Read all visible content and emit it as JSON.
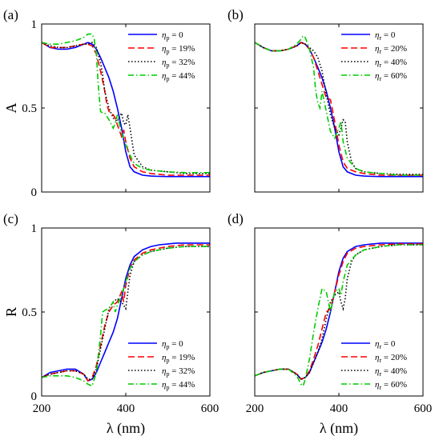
{
  "chart_data": [
    {
      "panel_label": "(a)",
      "type": "line",
      "ylabel": "A",
      "xlabel": "",
      "xlim": [
        200,
        600
      ],
      "ylim": [
        0,
        1
      ],
      "xticks": [],
      "yticks": [
        "0",
        "0.5",
        "1"
      ],
      "legend": {
        "position": "top-right",
        "symbol": "η",
        "subscript": "p"
      },
      "series": [
        {
          "name": "0",
          "color": "#0000ff",
          "dash": "solid",
          "x": [
            200,
            220,
            240,
            260,
            280,
            300,
            310,
            320,
            330,
            340,
            350,
            360,
            370,
            380,
            390,
            400,
            410,
            420,
            440,
            460,
            480,
            500,
            520,
            540,
            560,
            580,
            600
          ],
          "y": [
            0.89,
            0.86,
            0.85,
            0.85,
            0.86,
            0.88,
            0.89,
            0.88,
            0.85,
            0.8,
            0.74,
            0.68,
            0.6,
            0.5,
            0.38,
            0.24,
            0.15,
            0.12,
            0.1,
            0.095,
            0.093,
            0.092,
            0.092,
            0.092,
            0.092,
            0.092,
            0.092
          ]
        },
        {
          "name": "19%",
          "color": "#ff0000",
          "dash": "dashed",
          "x": [
            200,
            220,
            240,
            260,
            280,
            300,
            310,
            320,
            330,
            340,
            350,
            355,
            360,
            370,
            375,
            380,
            390,
            395,
            400,
            410,
            420,
            440,
            460,
            500,
            540,
            580,
            600
          ],
          "y": [
            0.89,
            0.86,
            0.86,
            0.86,
            0.87,
            0.88,
            0.88,
            0.87,
            0.82,
            0.72,
            0.6,
            0.52,
            0.48,
            0.46,
            0.44,
            0.4,
            0.33,
            0.37,
            0.3,
            0.2,
            0.15,
            0.12,
            0.11,
            0.1,
            0.1,
            0.1,
            0.1
          ]
        },
        {
          "name": "32%",
          "color": "#000000",
          "dash": "dotted",
          "x": [
            200,
            220,
            240,
            260,
            280,
            300,
            310,
            320,
            330,
            340,
            345,
            350,
            360,
            370,
            380,
            385,
            390,
            395,
            400,
            405,
            410,
            420,
            440,
            460,
            500,
            540,
            580,
            600
          ],
          "y": [
            0.89,
            0.87,
            0.86,
            0.86,
            0.87,
            0.88,
            0.88,
            0.89,
            0.86,
            0.77,
            0.7,
            0.6,
            0.5,
            0.44,
            0.42,
            0.45,
            0.47,
            0.41,
            0.4,
            0.46,
            0.38,
            0.22,
            0.15,
            0.13,
            0.12,
            0.11,
            0.11,
            0.11
          ]
        },
        {
          "name": "44%",
          "color": "#00cc00",
          "dash": "dashdot",
          "x": [
            200,
            220,
            240,
            260,
            280,
            300,
            310,
            320,
            325,
            330,
            335,
            340,
            345,
            350,
            360,
            370,
            375,
            380,
            390,
            400,
            410,
            420,
            440,
            460,
            500,
            540,
            580,
            600
          ],
          "y": [
            0.89,
            0.88,
            0.88,
            0.89,
            0.9,
            0.92,
            0.94,
            0.94,
            0.91,
            0.82,
            0.62,
            0.48,
            0.47,
            0.47,
            0.43,
            0.38,
            0.41,
            0.46,
            0.35,
            0.28,
            0.22,
            0.17,
            0.14,
            0.13,
            0.12,
            0.115,
            0.115,
            0.115
          ]
        }
      ]
    },
    {
      "panel_label": "(b)",
      "type": "line",
      "ylabel": "",
      "xlabel": "",
      "xlim": [
        200,
        600
      ],
      "ylim": [
        0,
        1
      ],
      "xticks": [],
      "yticks": [],
      "legend": {
        "position": "top-right",
        "symbol": "η",
        "subscript": "r"
      },
      "series": [
        {
          "name": "0",
          "color": "#0000ff",
          "dash": "solid",
          "x": [
            200,
            220,
            240,
            260,
            280,
            300,
            310,
            320,
            330,
            340,
            350,
            360,
            370,
            380,
            390,
            400,
            410,
            420,
            440,
            460,
            480,
            500,
            520,
            540,
            560,
            580,
            600
          ],
          "y": [
            0.89,
            0.86,
            0.84,
            0.84,
            0.85,
            0.87,
            0.89,
            0.88,
            0.85,
            0.8,
            0.74,
            0.68,
            0.6,
            0.5,
            0.38,
            0.24,
            0.15,
            0.12,
            0.1,
            0.095,
            0.093,
            0.092,
            0.092,
            0.092,
            0.092,
            0.092,
            0.092
          ]
        },
        {
          "name": "20%",
          "color": "#ff0000",
          "dash": "dashed",
          "x": [
            200,
            220,
            240,
            260,
            280,
            300,
            310,
            320,
            330,
            340,
            350,
            360,
            370,
            380,
            390,
            400,
            410,
            420,
            440,
            460,
            500,
            540,
            580,
            600
          ],
          "y": [
            0.89,
            0.86,
            0.84,
            0.84,
            0.85,
            0.87,
            0.89,
            0.88,
            0.85,
            0.8,
            0.72,
            0.64,
            0.56,
            0.55,
            0.42,
            0.28,
            0.18,
            0.14,
            0.12,
            0.11,
            0.1,
            0.1,
            0.1,
            0.1
          ]
        },
        {
          "name": "40%",
          "color": "#000000",
          "dash": "dotted",
          "x": [
            200,
            220,
            240,
            260,
            280,
            300,
            310,
            320,
            330,
            340,
            350,
            360,
            370,
            380,
            390,
            400,
            405,
            410,
            415,
            420,
            430,
            440,
            460,
            500,
            540,
            580,
            600
          ],
          "y": [
            0.89,
            0.86,
            0.84,
            0.84,
            0.85,
            0.87,
            0.89,
            0.88,
            0.86,
            0.84,
            0.8,
            0.72,
            0.58,
            0.46,
            0.38,
            0.34,
            0.38,
            0.43,
            0.42,
            0.3,
            0.18,
            0.14,
            0.12,
            0.11,
            0.105,
            0.105,
            0.105
          ]
        },
        {
          "name": "60%",
          "color": "#00cc00",
          "dash": "dashdot",
          "x": [
            200,
            220,
            240,
            260,
            280,
            300,
            310,
            315,
            320,
            330,
            340,
            345,
            350,
            355,
            360,
            370,
            380,
            390,
            400,
            405,
            410,
            420,
            440,
            460,
            500,
            540,
            580,
            600
          ],
          "y": [
            0.89,
            0.86,
            0.84,
            0.84,
            0.85,
            0.88,
            0.91,
            0.93,
            0.92,
            0.85,
            0.74,
            0.6,
            0.53,
            0.5,
            0.6,
            0.48,
            0.36,
            0.32,
            0.38,
            0.42,
            0.3,
            0.2,
            0.14,
            0.12,
            0.11,
            0.1,
            0.1,
            0.1
          ]
        }
      ]
    },
    {
      "panel_label": "(c)",
      "type": "line",
      "ylabel": "R",
      "xlabel": "λ (nm)",
      "xlim": [
        200,
        600
      ],
      "ylim": [
        0,
        1
      ],
      "xticks": [
        "200",
        "400",
        "600"
      ],
      "yticks": [
        "0",
        "0.5",
        "1"
      ],
      "legend": {
        "position": "bottom-right",
        "symbol": "η",
        "subscript": "p"
      },
      "series": [
        {
          "name": "0",
          "color": "#0000ff",
          "dash": "solid",
          "x": [
            200,
            220,
            240,
            260,
            280,
            300,
            310,
            320,
            330,
            340,
            350,
            360,
            370,
            380,
            390,
            400,
            410,
            420,
            440,
            460,
            480,
            500,
            520,
            540,
            560,
            580,
            600
          ],
          "y": [
            0.11,
            0.14,
            0.15,
            0.16,
            0.16,
            0.13,
            0.09,
            0.1,
            0.14,
            0.2,
            0.26,
            0.32,
            0.38,
            0.46,
            0.58,
            0.7,
            0.78,
            0.83,
            0.87,
            0.89,
            0.9,
            0.905,
            0.91,
            0.91,
            0.91,
            0.91,
            0.91
          ]
        },
        {
          "name": "19%",
          "color": "#ff0000",
          "dash": "dashed",
          "x": [
            200,
            220,
            240,
            260,
            280,
            300,
            310,
            320,
            330,
            340,
            350,
            360,
            370,
            380,
            390,
            395,
            400,
            410,
            420,
            440,
            460,
            500,
            540,
            580,
            600
          ],
          "y": [
            0.11,
            0.13,
            0.14,
            0.15,
            0.15,
            0.13,
            0.09,
            0.11,
            0.18,
            0.3,
            0.42,
            0.5,
            0.54,
            0.56,
            0.62,
            0.56,
            0.66,
            0.76,
            0.81,
            0.85,
            0.87,
            0.89,
            0.9,
            0.9,
            0.9
          ]
        },
        {
          "name": "32%",
          "color": "#000000",
          "dash": "dotted",
          "x": [
            200,
            220,
            240,
            260,
            280,
            300,
            310,
            320,
            330,
            340,
            350,
            360,
            370,
            380,
            390,
            400,
            405,
            410,
            420,
            440,
            460,
            500,
            540,
            580,
            600
          ],
          "y": [
            0.11,
            0.13,
            0.14,
            0.15,
            0.15,
            0.13,
            0.1,
            0.1,
            0.16,
            0.28,
            0.4,
            0.52,
            0.56,
            0.58,
            0.56,
            0.52,
            0.62,
            0.72,
            0.8,
            0.84,
            0.86,
            0.88,
            0.89,
            0.89,
            0.89
          ]
        },
        {
          "name": "44%",
          "color": "#00cc00",
          "dash": "dashdot",
          "x": [
            200,
            220,
            240,
            260,
            280,
            300,
            310,
            320,
            330,
            340,
            345,
            350,
            360,
            370,
            375,
            380,
            390,
            400,
            410,
            420,
            440,
            460,
            500,
            540,
            580,
            600
          ],
          "y": [
            0.11,
            0.12,
            0.12,
            0.12,
            0.11,
            0.09,
            0.07,
            0.06,
            0.14,
            0.36,
            0.5,
            0.51,
            0.52,
            0.56,
            0.5,
            0.54,
            0.6,
            0.68,
            0.76,
            0.8,
            0.84,
            0.86,
            0.88,
            0.89,
            0.89,
            0.89
          ]
        }
      ]
    },
    {
      "panel_label": "(d)",
      "type": "line",
      "ylabel": "",
      "xlabel": "λ (nm)",
      "xlim": [
        200,
        600
      ],
      "ylim": [
        0,
        1
      ],
      "xticks": [
        "200",
        "400",
        "600"
      ],
      "yticks": [],
      "legend": {
        "position": "bottom-right",
        "symbol": "η",
        "subscript": "r"
      },
      "series": [
        {
          "name": "0",
          "color": "#0000ff",
          "dash": "solid",
          "x": [
            200,
            220,
            240,
            260,
            280,
            300,
            310,
            320,
            330,
            340,
            350,
            360,
            370,
            380,
            390,
            400,
            410,
            420,
            440,
            460,
            480,
            500,
            520,
            540,
            560,
            580,
            600
          ],
          "y": [
            0.12,
            0.14,
            0.15,
            0.16,
            0.16,
            0.13,
            0.1,
            0.11,
            0.14,
            0.2,
            0.26,
            0.32,
            0.4,
            0.5,
            0.62,
            0.74,
            0.82,
            0.86,
            0.89,
            0.9,
            0.905,
            0.91,
            0.91,
            0.91,
            0.91,
            0.91,
            0.91
          ]
        },
        {
          "name": "20%",
          "color": "#ff0000",
          "dash": "dashed",
          "x": [
            200,
            220,
            240,
            260,
            280,
            300,
            310,
            320,
            330,
            340,
            350,
            360,
            370,
            380,
            390,
            400,
            410,
            420,
            440,
            460,
            500,
            540,
            580,
            600
          ],
          "y": [
            0.12,
            0.14,
            0.15,
            0.16,
            0.16,
            0.13,
            0.1,
            0.11,
            0.15,
            0.22,
            0.3,
            0.4,
            0.5,
            0.52,
            0.62,
            0.72,
            0.8,
            0.85,
            0.88,
            0.89,
            0.9,
            0.905,
            0.905,
            0.905
          ]
        },
        {
          "name": "40%",
          "color": "#000000",
          "dash": "dotted",
          "x": [
            200,
            220,
            240,
            260,
            280,
            300,
            310,
            320,
            330,
            340,
            350,
            360,
            370,
            380,
            390,
            400,
            405,
            410,
            415,
            420,
            430,
            440,
            460,
            500,
            540,
            580,
            600
          ],
          "y": [
            0.12,
            0.14,
            0.15,
            0.16,
            0.16,
            0.13,
            0.1,
            0.11,
            0.14,
            0.2,
            0.26,
            0.34,
            0.46,
            0.56,
            0.6,
            0.62,
            0.56,
            0.52,
            0.58,
            0.7,
            0.8,
            0.84,
            0.87,
            0.89,
            0.9,
            0.9,
            0.9
          ]
        },
        {
          "name": "60%",
          "color": "#00cc00",
          "dash": "dashdot",
          "x": [
            200,
            220,
            240,
            260,
            280,
            300,
            310,
            315,
            320,
            330,
            340,
            350,
            360,
            370,
            380,
            390,
            400,
            405,
            410,
            420,
            440,
            460,
            500,
            540,
            580,
            600
          ],
          "y": [
            0.12,
            0.14,
            0.15,
            0.16,
            0.16,
            0.12,
            0.07,
            0.06,
            0.1,
            0.22,
            0.38,
            0.52,
            0.64,
            0.62,
            0.5,
            0.62,
            0.64,
            0.6,
            0.68,
            0.78,
            0.84,
            0.87,
            0.89,
            0.9,
            0.9,
            0.9
          ]
        }
      ]
    }
  ]
}
